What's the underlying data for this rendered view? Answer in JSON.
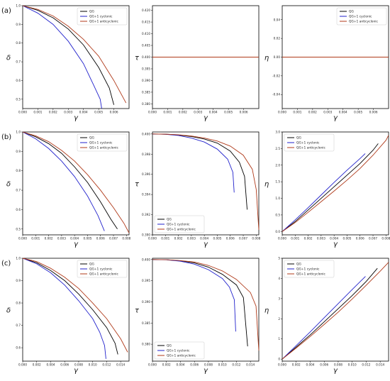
{
  "colors": {
    "QG": "#000000",
    "QG+1 cyclonic": "#2222cc",
    "QG+1 anticyclonic": "#b03a1a"
  },
  "legend_labels": [
    "QG",
    "QG+1 cyclonic",
    "QG+1 anticyclonic"
  ],
  "rows": [
    {
      "label": "(a)"
    },
    {
      "label": "(b)"
    },
    {
      "label": "(c)"
    }
  ],
  "chart_data": [
    {
      "type": "line",
      "row": 0,
      "col": 0,
      "xlabel": "γ",
      "ylabel": "δ",
      "xlim": [
        0,
        0.007
      ],
      "ylim": [
        0.45,
        1.0
      ],
      "xticks": [
        "0.000",
        "0.001",
        "0.002",
        "0.003",
        "0.004",
        "0.005",
        "0.006"
      ],
      "yticks": [
        "0.5",
        "0.6",
        "0.7",
        "0.8",
        "0.9",
        "1.0"
      ],
      "legend": "top-right",
      "series": [
        {
          "name": "QG",
          "x": [
            0,
            0.001,
            0.002,
            0.003,
            0.004,
            0.005,
            0.0057,
            0.006
          ],
          "y": [
            1.0,
            0.975,
            0.935,
            0.875,
            0.79,
            0.67,
            0.56,
            0.47
          ]
        },
        {
          "name": "QG+1 cyclonic",
          "x": [
            0,
            0.001,
            0.002,
            0.003,
            0.004,
            0.0047,
            0.0051,
            0.0052
          ],
          "y": [
            1.0,
            0.96,
            0.9,
            0.81,
            0.69,
            0.57,
            0.5,
            0.45
          ]
        },
        {
          "name": "QG+1 anticyclonic",
          "x": [
            0,
            0.001,
            0.002,
            0.003,
            0.004,
            0.005,
            0.006,
            0.0068
          ],
          "y": [
            1.0,
            0.98,
            0.945,
            0.89,
            0.82,
            0.73,
            0.6,
            0.48
          ]
        }
      ]
    },
    {
      "type": "line",
      "row": 0,
      "col": 1,
      "xlabel": "γ",
      "ylabel": "τ",
      "xlim": [
        0,
        0.007
      ],
      "ylim": [
        0.378,
        0.422
      ],
      "xticks": [
        "0.000",
        "0.001",
        "0.002",
        "0.003",
        "0.004",
        "0.005",
        "0.006"
      ],
      "yticks": [
        "0.380",
        "0.385",
        "0.390",
        "0.395",
        "0.400",
        "0.405",
        "0.410",
        "0.415",
        "0.420"
      ],
      "legend": "none",
      "series": [
        {
          "name": "QG",
          "x": [
            0,
            0.007
          ],
          "y": [
            0.4,
            0.4
          ]
        },
        {
          "name": "QG+1 cyclonic",
          "x": [
            0,
            0.007
          ],
          "y": [
            0.4,
            0.4
          ]
        },
        {
          "name": "QG+1 anticyclonic",
          "x": [
            0,
            0.007
          ],
          "y": [
            0.4,
            0.4
          ]
        }
      ]
    },
    {
      "type": "line",
      "row": 0,
      "col": 2,
      "xlabel": "γ",
      "ylabel": "η",
      "xlim": [
        0,
        0.007
      ],
      "ylim": [
        -0.055,
        0.055
      ],
      "xticks": [
        "0.000",
        "0.001",
        "0.002",
        "0.003",
        "0.004",
        "0.005",
        "0.006"
      ],
      "yticks": [
        "-0.04",
        "-0.02",
        "0.00",
        "0.02",
        "0.04"
      ],
      "legend": "top-right",
      "series": [
        {
          "name": "QG",
          "x": [
            0,
            0.007
          ],
          "y": [
            0,
            0
          ]
        },
        {
          "name": "QG+1 cyclonic",
          "x": [
            0,
            0.007
          ],
          "y": [
            0,
            0
          ]
        },
        {
          "name": "QG+1 anticyclonic",
          "x": [
            0,
            0.007
          ],
          "y": [
            0,
            0
          ]
        }
      ]
    },
    {
      "type": "line",
      "row": 1,
      "col": 0,
      "xlabel": "γ",
      "ylabel": "δ",
      "xlim": [
        0,
        0.0082
      ],
      "ylim": [
        0.47,
        1.0
      ],
      "xticks": [
        "0.000",
        "0.001",
        "0.002",
        "0.003",
        "0.004",
        "0.005",
        "0.006",
        "0.007",
        "0.008"
      ],
      "yticks": [
        "0.5",
        "0.6",
        "0.7",
        "0.8",
        "0.9",
        "1.0"
      ],
      "legend": "top-right",
      "series": [
        {
          "name": "QG",
          "x": [
            0,
            0.001,
            0.002,
            0.003,
            0.004,
            0.005,
            0.006,
            0.0068,
            0.0073
          ],
          "y": [
            1.0,
            0.975,
            0.94,
            0.89,
            0.82,
            0.74,
            0.64,
            0.55,
            0.5
          ]
        },
        {
          "name": "QG+1 cyclonic",
          "x": [
            0,
            0.001,
            0.002,
            0.003,
            0.004,
            0.005,
            0.0058,
            0.0063
          ],
          "y": [
            1.0,
            0.965,
            0.915,
            0.85,
            0.77,
            0.67,
            0.57,
            0.49
          ]
        },
        {
          "name": "QG+1 anticyclonic",
          "x": [
            0,
            0.001,
            0.002,
            0.003,
            0.004,
            0.005,
            0.006,
            0.007,
            0.0078,
            0.0082
          ],
          "y": [
            1.0,
            0.98,
            0.95,
            0.905,
            0.85,
            0.78,
            0.7,
            0.61,
            0.53,
            0.48
          ]
        }
      ]
    },
    {
      "type": "line",
      "row": 1,
      "col": 1,
      "xlabel": "γ",
      "ylabel": "τ",
      "xlim": [
        0,
        0.0082
      ],
      "ylim": [
        0.39,
        0.4002
      ],
      "xticks": [
        "0.000",
        "0.001",
        "0.002",
        "0.003",
        "0.004",
        "0.005",
        "0.006",
        "0.007",
        "0.008"
      ],
      "yticks": [
        "0.390",
        "0.392",
        "0.394",
        "0.396",
        "0.398",
        "0.400"
      ],
      "legend": "bottom-left",
      "series": [
        {
          "name": "QG",
          "x": [
            0,
            0.001,
            0.002,
            0.003,
            0.004,
            0.005,
            0.006,
            0.0067,
            0.0071,
            0.0073
          ],
          "y": [
            0.4,
            0.39998,
            0.3999,
            0.39975,
            0.3995,
            0.3991,
            0.3983,
            0.3972,
            0.3958,
            0.3925
          ]
        },
        {
          "name": "QG+1 cyclonic",
          "x": [
            0,
            0.001,
            0.002,
            0.003,
            0.004,
            0.005,
            0.0058,
            0.0062,
            0.0063
          ],
          "y": [
            0.4,
            0.39997,
            0.39985,
            0.3996,
            0.3992,
            0.3985,
            0.3975,
            0.3962,
            0.3942
          ]
        },
        {
          "name": "QG+1 anticyclonic",
          "x": [
            0,
            0.001,
            0.002,
            0.003,
            0.004,
            0.005,
            0.006,
            0.007,
            0.0077,
            0.008,
            0.0082
          ],
          "y": [
            0.4,
            0.39998,
            0.39992,
            0.3998,
            0.3996,
            0.3993,
            0.3988,
            0.3979,
            0.3965,
            0.3945,
            0.3905
          ]
        }
      ]
    },
    {
      "type": "line",
      "row": 1,
      "col": 2,
      "xlabel": "γ",
      "ylabel": "η",
      "xlim": [
        0,
        0.0082
      ],
      "ylim": [
        -0.1,
        3.0
      ],
      "xticks": [
        "0.000",
        "0.001",
        "0.002",
        "0.003",
        "0.004",
        "0.005",
        "0.006",
        "0.007",
        "0.008"
      ],
      "yticks": [
        "0.0",
        "0.5",
        "1.0",
        "1.5",
        "2.0",
        "2.5",
        "3.0"
      ],
      "legend": "top-left",
      "series": [
        {
          "name": "QG",
          "x": [
            0,
            0.001,
            0.002,
            0.003,
            0.004,
            0.005,
            0.006,
            0.007,
            0.0074
          ],
          "y": [
            0,
            0.3,
            0.65,
            1.0,
            1.35,
            1.7,
            2.05,
            2.45,
            2.65
          ]
        },
        {
          "name": "QG+1 cyclonic",
          "x": [
            0,
            0.001,
            0.002,
            0.003,
            0.004,
            0.005,
            0.006,
            0.0064
          ],
          "y": [
            0,
            0.35,
            0.72,
            1.1,
            1.48,
            1.85,
            2.2,
            2.35
          ]
        },
        {
          "name": "QG+1 anticyclonic",
          "x": [
            0,
            0.001,
            0.002,
            0.003,
            0.004,
            0.005,
            0.006,
            0.007,
            0.008,
            0.0082
          ],
          "y": [
            0,
            0.27,
            0.58,
            0.9,
            1.22,
            1.55,
            1.9,
            2.3,
            2.75,
            2.9
          ]
        }
      ]
    },
    {
      "type": "line",
      "row": 2,
      "col": 0,
      "xlabel": "γ",
      "ylabel": "δ",
      "xlim": [
        0,
        0.0152
      ],
      "ylim": [
        0.54,
        1.0
      ],
      "xticks": [
        "0.000",
        "0.002",
        "0.004",
        "0.006",
        "0.008",
        "0.010",
        "0.012",
        "0.014"
      ],
      "yticks": [
        "0.6",
        "0.7",
        "0.8",
        "0.9",
        "1.0"
      ],
      "legend": "top-right",
      "series": [
        {
          "name": "QG",
          "x": [
            0,
            0.002,
            0.004,
            0.006,
            0.008,
            0.01,
            0.012,
            0.0132,
            0.0136
          ],
          "y": [
            1.0,
            0.98,
            0.945,
            0.9,
            0.84,
            0.77,
            0.69,
            0.62,
            0.57
          ]
        },
        {
          "name": "QG+1 cyclonic",
          "x": [
            0,
            0.002,
            0.004,
            0.006,
            0.008,
            0.01,
            0.011,
            0.0117,
            0.0119
          ],
          "y": [
            1.0,
            0.975,
            0.935,
            0.88,
            0.81,
            0.73,
            0.67,
            0.61,
            0.55
          ]
        },
        {
          "name": "QG+1 anticyclonic",
          "x": [
            0,
            0.002,
            0.004,
            0.006,
            0.008,
            0.01,
            0.012,
            0.014,
            0.015
          ],
          "y": [
            1.0,
            0.985,
            0.955,
            0.915,
            0.865,
            0.8,
            0.73,
            0.64,
            0.58
          ]
        }
      ]
    },
    {
      "type": "line",
      "row": 2,
      "col": 1,
      "xlabel": "γ",
      "ylabel": "τ",
      "xlim": [
        0,
        0.0152
      ],
      "ylim": [
        0.376,
        0.4003
      ],
      "xticks": [
        "0.000",
        "0.002",
        "0.004",
        "0.006",
        "0.008",
        "0.010",
        "0.012",
        "0.014"
      ],
      "yticks": [
        "0.380",
        "0.385",
        "0.390",
        "0.395",
        "0.400"
      ],
      "legend": "bottom-left",
      "series": [
        {
          "name": "QG",
          "x": [
            0,
            0.002,
            0.004,
            0.006,
            0.008,
            0.01,
            0.012,
            0.013,
            0.0136
          ],
          "y": [
            0.4,
            0.39995,
            0.3997,
            0.3992,
            0.3982,
            0.3965,
            0.394,
            0.391,
            0.3795
          ]
        },
        {
          "name": "QG+1 cyclonic",
          "x": [
            0,
            0.002,
            0.004,
            0.006,
            0.008,
            0.01,
            0.011,
            0.0117,
            0.0119
          ],
          "y": [
            0.4,
            0.39993,
            0.3996,
            0.3989,
            0.3976,
            0.3955,
            0.3935,
            0.3905,
            0.383
          ]
        },
        {
          "name": "QG+1 anticyclonic",
          "x": [
            0,
            0.002,
            0.004,
            0.006,
            0.008,
            0.01,
            0.012,
            0.014,
            0.0148,
            0.0152
          ],
          "y": [
            0.4,
            0.39996,
            0.39975,
            0.3994,
            0.3986,
            0.3973,
            0.3953,
            0.3922,
            0.389,
            0.3785
          ]
        }
      ]
    },
    {
      "type": "line",
      "row": 2,
      "col": 2,
      "xlabel": "γ",
      "ylabel": "η",
      "xlim": [
        0,
        0.0152
      ],
      "ylim": [
        -0.1,
        5.0
      ],
      "xticks": [
        "0.000",
        "0.002",
        "0.004",
        "0.006",
        "0.008",
        "0.010",
        "0.012",
        "0.014"
      ],
      "yticks": [
        "0",
        "1",
        "2",
        "3",
        "4",
        "5"
      ],
      "legend": "top-left",
      "series": [
        {
          "name": "QG",
          "x": [
            0,
            0.002,
            0.004,
            0.006,
            0.008,
            0.01,
            0.012,
            0.0136
          ],
          "y": [
            0,
            0.6,
            1.2,
            1.85,
            2.5,
            3.15,
            3.85,
            4.5
          ]
        },
        {
          "name": "QG+1 cyclonic",
          "x": [
            0,
            0.002,
            0.004,
            0.006,
            0.008,
            0.01,
            0.0119
          ],
          "y": [
            0,
            0.67,
            1.35,
            2.05,
            2.75,
            3.45,
            4.1
          ]
        },
        {
          "name": "QG+1 anticyclonic",
          "x": [
            0,
            0.002,
            0.004,
            0.006,
            0.008,
            0.01,
            0.012,
            0.014,
            0.0152
          ],
          "y": [
            0,
            0.55,
            1.12,
            1.72,
            2.33,
            2.98,
            3.66,
            4.36,
            4.8
          ]
        }
      ]
    }
  ]
}
